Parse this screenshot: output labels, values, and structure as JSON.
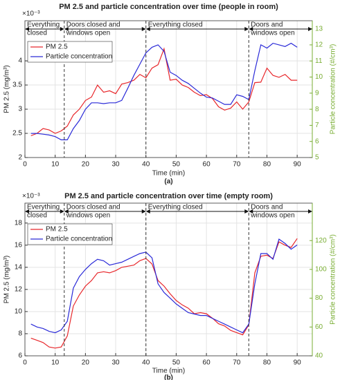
{
  "chart_data": [
    {
      "type": "line",
      "title": "PM 2.5 and particle concentration over time (people in room)",
      "caption": "(a)",
      "x_label": "Time (min)",
      "y_label": "PM 2.5 (mg/m³)",
      "y_multiplier": "×10⁻³",
      "y2_label": "Particle concentration (#/cm³)",
      "y2_color": "#77ac30",
      "xlim": [
        0,
        95
      ],
      "xticks": [
        0,
        10,
        20,
        30,
        40,
        50,
        60,
        70,
        80,
        90
      ],
      "ylim": [
        2,
        4.83
      ],
      "yticks": [
        2,
        2.5,
        3,
        3.5,
        4
      ],
      "y2lim": [
        5,
        13.5
      ],
      "y2ticks": [
        5,
        6,
        7,
        8,
        9,
        10,
        11,
        12,
        13
      ],
      "grid": true,
      "legend": "upper left",
      "phase_boundaries": [
        13,
        40,
        74
      ],
      "phases": [
        {
          "lines": [
            "Everything",
            "closed"
          ]
        },
        {
          "lines": [
            "Doors closed and",
            "windows open"
          ]
        },
        {
          "lines": [
            "Everything closed"
          ]
        },
        {
          "lines": [
            "Doors and",
            "windows open"
          ]
        }
      ],
      "x": [
        2,
        4,
        6,
        8,
        10,
        12,
        14,
        16,
        18,
        20,
        22,
        24,
        26,
        28,
        30,
        32,
        34,
        36,
        38,
        40,
        42,
        44,
        46,
        48,
        50,
        52,
        54,
        56,
        58,
        60,
        62,
        64,
        66,
        68,
        70,
        72,
        74,
        76,
        78,
        80,
        82,
        84,
        86,
        88,
        90
      ],
      "series": [
        {
          "name": "PM 2.5",
          "color": "#e8262a",
          "axis": "y",
          "values": [
            2.45,
            2.5,
            2.6,
            2.57,
            2.5,
            2.55,
            2.65,
            2.88,
            3.0,
            3.18,
            3.25,
            3.5,
            3.35,
            3.38,
            3.32,
            3.52,
            3.55,
            3.6,
            3.72,
            3.65,
            3.85,
            3.92,
            4.25,
            3.6,
            3.62,
            3.5,
            3.45,
            3.35,
            3.28,
            3.3,
            3.22,
            3.05,
            2.98,
            3.02,
            3.15,
            3.0,
            3.15,
            3.55,
            3.56,
            3.85,
            3.7,
            3.66,
            3.72,
            3.6,
            3.6
          ]
        },
        {
          "name": "Particle concentration",
          "color": "#2a2ad8",
          "axis": "y2",
          "values": [
            6.5,
            6.5,
            6.45,
            6.4,
            6.3,
            6.1,
            6.1,
            6.8,
            7.3,
            8.0,
            8.4,
            8.4,
            8.35,
            8.4,
            8.4,
            8.55,
            9.3,
            10.1,
            10.8,
            11.5,
            11.85,
            12.0,
            11.6,
            10.3,
            10.1,
            9.8,
            9.6,
            9.3,
            9.0,
            8.75,
            8.7,
            8.5,
            8.3,
            8.3,
            8.9,
            8.8,
            8.6,
            10.4,
            12.0,
            11.8,
            12.1,
            12.0,
            11.9,
            12.1,
            11.85
          ]
        }
      ]
    },
    {
      "type": "line",
      "title": "PM 2.5 and particle concentration over time (empty room)",
      "caption": "(b)",
      "x_label": "Time (min)",
      "y_label": "PM 2.5 (mg/m³)",
      "y_multiplier": "×10⁻³",
      "y2_label": "Particle concentration (#/cm³)",
      "y2_color": "#77ac30",
      "xlim": [
        0,
        95
      ],
      "xticks": [
        0,
        10,
        20,
        30,
        40,
        50,
        60,
        70,
        80,
        90
      ],
      "ylim": [
        6,
        19.8
      ],
      "yticks": [
        6,
        8,
        10,
        12,
        14,
        16,
        18
      ],
      "y2lim": [
        40,
        146
      ],
      "y2ticks": [
        40,
        60,
        80,
        100,
        120
      ],
      "grid": true,
      "legend": "upper left",
      "phase_boundaries": [
        13,
        40,
        74
      ],
      "phases": [
        {
          "lines": [
            "Everything",
            "closed"
          ]
        },
        {
          "lines": [
            "Doors closed and",
            "windows open"
          ]
        },
        {
          "lines": [
            "Everything closed"
          ]
        },
        {
          "lines": [
            "Doors and",
            "windows open"
          ]
        }
      ],
      "x": [
        2,
        4,
        6,
        8,
        10,
        12,
        14,
        16,
        18,
        20,
        22,
        24,
        26,
        28,
        30,
        32,
        34,
        36,
        38,
        40,
        42,
        44,
        46,
        48,
        50,
        52,
        54,
        56,
        58,
        60,
        62,
        64,
        66,
        68,
        70,
        72,
        74,
        76,
        78,
        80,
        82,
        84,
        86,
        88,
        90
      ],
      "series": [
        {
          "name": "PM 2.5",
          "color": "#e8262a",
          "axis": "y",
          "values": [
            7.6,
            7.4,
            7.2,
            6.8,
            6.7,
            6.8,
            7.8,
            10.5,
            11.5,
            12.3,
            12.8,
            13.5,
            13.6,
            13.5,
            13.7,
            14.0,
            14.1,
            14.2,
            14.6,
            14.8,
            14.3,
            12.8,
            12.3,
            11.6,
            11.0,
            10.6,
            10.3,
            9.8,
            9.9,
            9.8,
            9.4,
            8.9,
            8.7,
            8.3,
            8.1,
            7.9,
            8.8,
            13.5,
            15.0,
            15.1,
            14.8,
            16.3,
            16.0,
            15.8,
            16.6
          ]
        },
        {
          "name": "Particle concentration",
          "color": "#2a2ad8",
          "axis": "y2",
          "values": [
            62,
            60,
            59,
            57,
            56,
            58,
            64,
            87,
            95,
            100,
            104,
            107,
            106,
            103,
            104,
            105,
            107,
            109,
            111,
            112,
            108,
            90,
            84,
            80,
            76,
            73,
            70,
            69,
            68,
            68,
            66,
            64,
            62,
            60,
            58,
            56,
            62,
            90,
            111,
            111,
            107,
            121,
            118,
            114,
            117
          ]
        }
      ]
    }
  ]
}
